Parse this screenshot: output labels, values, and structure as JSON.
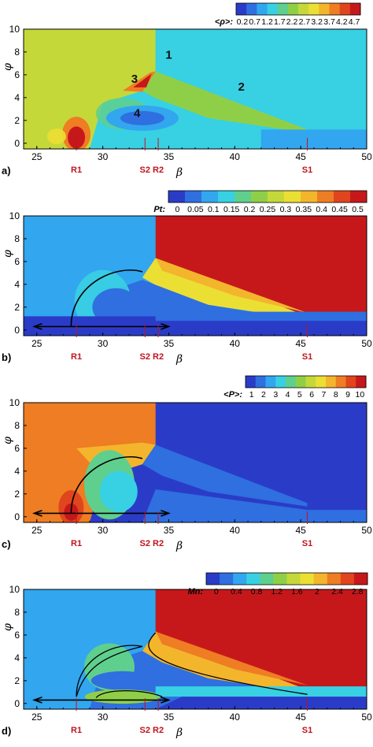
{
  "chart_data": [
    {
      "type": "heatmap",
      "panel_label": "a)",
      "colorbar_title": "<ρ>:",
      "colorbar_ticks": [
        "0.2",
        "0.7",
        "1.2",
        "1.7",
        "2.2",
        "2.7",
        "3.2",
        "3.7",
        "4.2",
        "4.7"
      ],
      "xlabel": "β",
      "ylabel": "φ",
      "xlim": [
        24,
        50
      ],
      "ylim": [
        -0.5,
        10
      ],
      "xticks": [
        "25",
        "30",
        "35",
        "40",
        "45",
        "50"
      ],
      "yticks": [
        "0",
        "2",
        "4",
        "6",
        "8",
        "10"
      ],
      "markers": [
        {
          "label": "R1",
          "x": 28
        },
        {
          "label": "S2",
          "x": 33.2
        },
        {
          "label": "R2",
          "x": 34.2
        },
        {
          "label": "S1",
          "x": 45.5
        }
      ],
      "annotations": [
        {
          "text": "1",
          "x": 35,
          "y": 7.4
        },
        {
          "text": "2",
          "x": 40.5,
          "y": 4.6
        },
        {
          "text": "3",
          "x": 32.4,
          "y": 5.3
        },
        {
          "text": "4",
          "x": 32.6,
          "y": 2.3
        }
      ],
      "palette": [
        "#2a3cc7",
        "#2f6fe0",
        "#32a6ef",
        "#38d0e3",
        "#5fcf8e",
        "#8fcf48",
        "#c5d83a",
        "#ecdf34",
        "#f3b52c",
        "#ee7d23",
        "#e0451e",
        "#c6181b"
      ]
    },
    {
      "type": "heatmap",
      "panel_label": "b)",
      "colorbar_title": "Pt:",
      "colorbar_ticks": [
        "0",
        "0.05",
        "0.1",
        "0.15",
        "0.2",
        "0.25",
        "0.3",
        "0.35",
        "0.4",
        "0.45",
        "0.5"
      ],
      "xlabel": "β",
      "ylabel": "φ",
      "xlim": [
        24,
        50
      ],
      "ylim": [
        -0.5,
        10
      ],
      "xticks": [
        "25",
        "30",
        "35",
        "40",
        "45",
        "50"
      ],
      "yticks": [
        "0",
        "2",
        "4",
        "6",
        "8",
        "10"
      ],
      "markers": [
        {
          "label": "R1",
          "x": 28
        },
        {
          "label": "S2",
          "x": 33.2
        },
        {
          "label": "R2",
          "x": 34.2
        },
        {
          "label": "S1",
          "x": 45.5
        }
      ],
      "palette": [
        "#2a3cc7",
        "#2f6fe0",
        "#32a6ef",
        "#38d0e3",
        "#5fcf8e",
        "#8fcf48",
        "#c5d83a",
        "#ecdf34",
        "#f3b52c",
        "#ee7d23",
        "#e0451e",
        "#c6181b"
      ]
    },
    {
      "type": "heatmap",
      "panel_label": "c)",
      "colorbar_title": "<P>:",
      "colorbar_ticks": [
        "1",
        "2",
        "3",
        "4",
        "5",
        "6",
        "7",
        "8",
        "9",
        "10"
      ],
      "xlabel": "β",
      "ylabel": "φ",
      "xlim": [
        24,
        50
      ],
      "ylim": [
        -0.5,
        10
      ],
      "xticks": [
        "25",
        "30",
        "35",
        "40",
        "45",
        "50"
      ],
      "yticks": [
        "0",
        "2",
        "4",
        "6",
        "8",
        "10"
      ],
      "markers": [
        {
          "label": "R1",
          "x": 28
        },
        {
          "label": "S2",
          "x": 33.2
        },
        {
          "label": "R2",
          "x": 34.2
        },
        {
          "label": "S1",
          "x": 45.5
        }
      ],
      "palette": [
        "#2a3cc7",
        "#2f6fe0",
        "#32a6ef",
        "#38d0e3",
        "#5fcf8e",
        "#8fcf48",
        "#c5d83a",
        "#ecdf34",
        "#f3b52c",
        "#ee7d23",
        "#e0451e",
        "#c6181b"
      ]
    },
    {
      "type": "heatmap",
      "panel_label": "d)",
      "colorbar_title": "Mn:",
      "colorbar_ticks": [
        "0",
        "0.4",
        "0.8",
        "1.2",
        "1.6",
        "2",
        "2.4",
        "2.8"
      ],
      "xlabel": "β",
      "ylabel": "φ",
      "xlim": [
        24,
        50
      ],
      "ylim": [
        -0.5,
        10
      ],
      "xticks": [
        "25",
        "30",
        "35",
        "40",
        "45",
        "50"
      ],
      "yticks": [
        "0",
        "2",
        "4",
        "6",
        "8",
        "10"
      ],
      "markers": [
        {
          "label": "R1",
          "x": 28
        },
        {
          "label": "S2",
          "x": 33.2
        },
        {
          "label": "R2",
          "x": 34.2
        },
        {
          "label": "S1",
          "x": 45.5
        }
      ],
      "palette": [
        "#2a3cc7",
        "#2f6fe0",
        "#32a6ef",
        "#38d0e3",
        "#5fcf8e",
        "#8fcf48",
        "#c5d83a",
        "#ecdf34",
        "#f3b52c",
        "#ee7d23",
        "#e0451e",
        "#c6181b"
      ]
    }
  ]
}
